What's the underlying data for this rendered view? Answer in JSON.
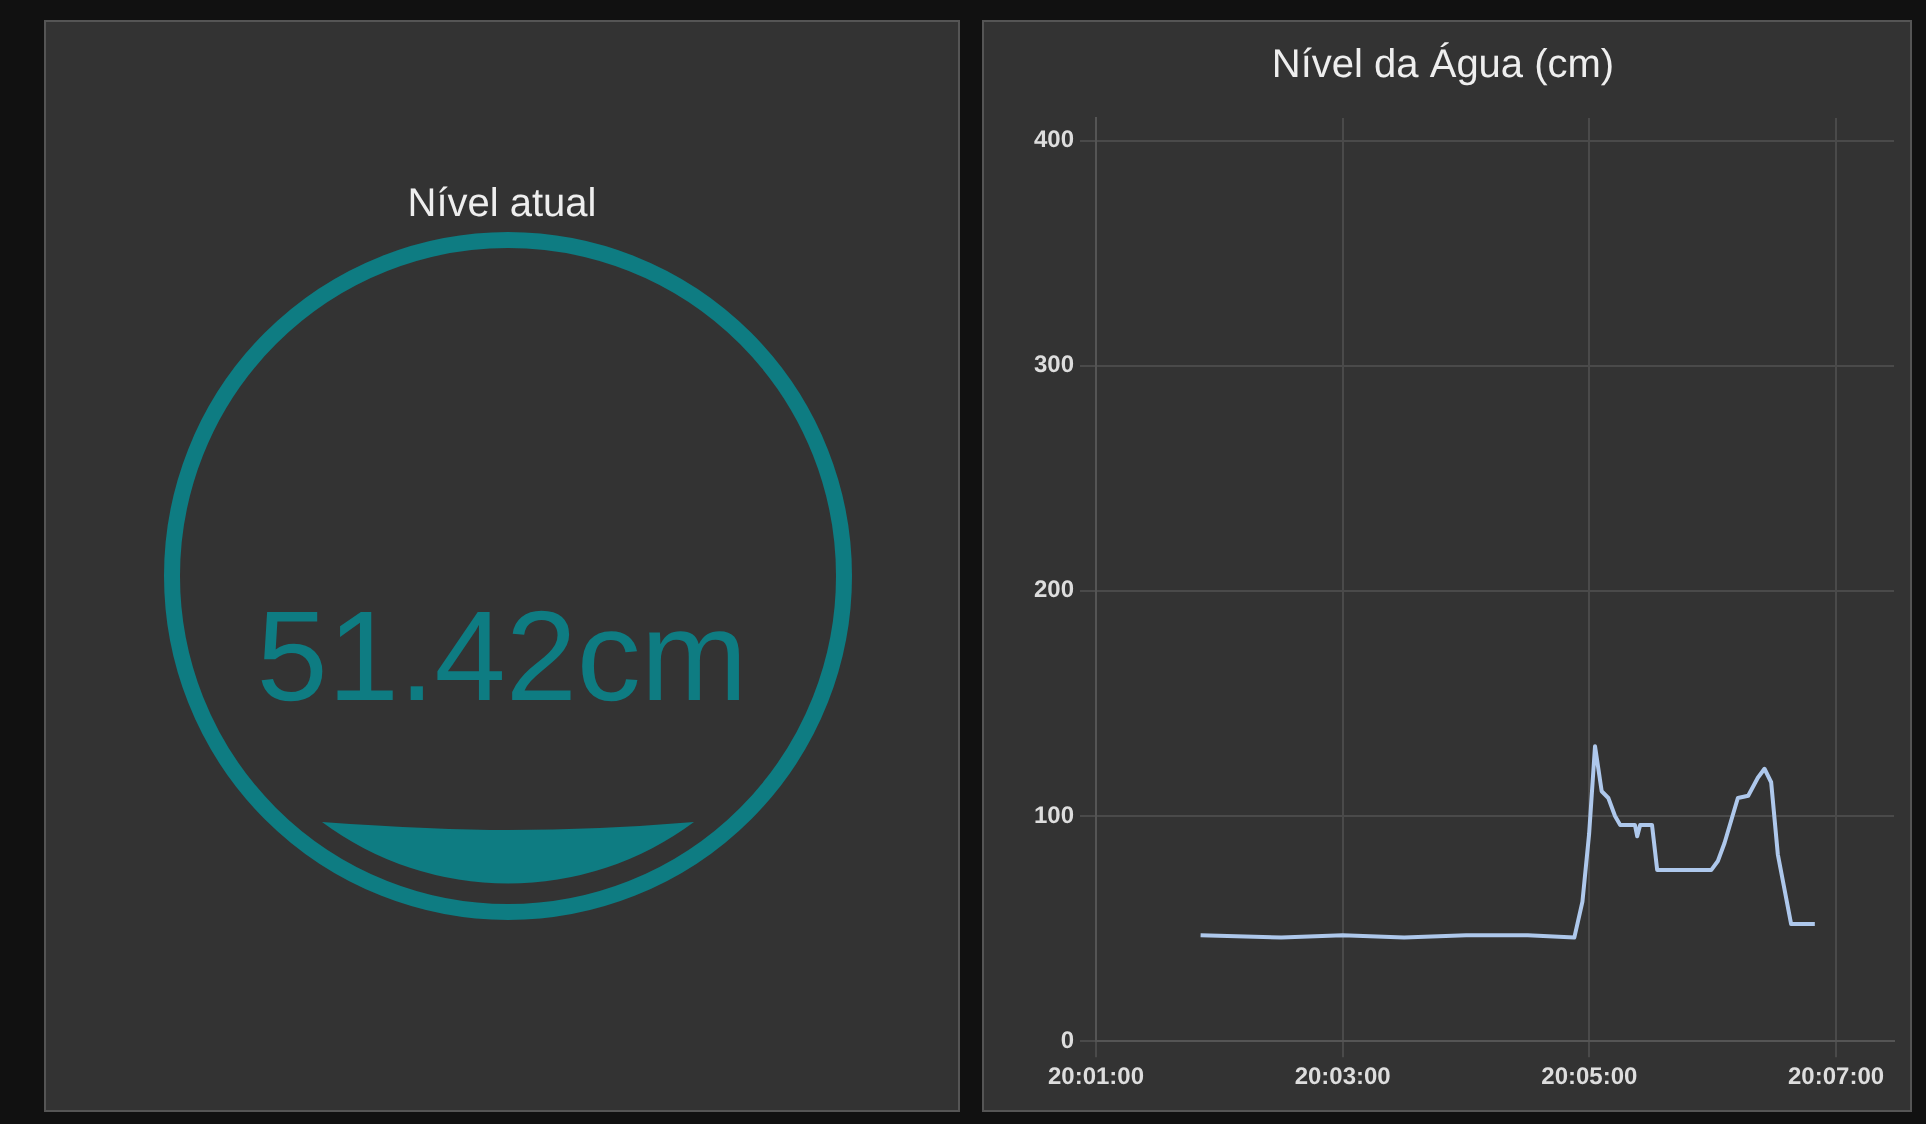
{
  "chart_data": [
    {
      "type": "other",
      "title": "Nível atual",
      "annotations": [
        "51.42cm"
      ],
      "color": "#0e7c82"
    },
    {
      "type": "line",
      "title": "Nível da Água (cm)",
      "xlim": [
        20.016667,
        20.1245
      ],
      "ylim": [
        0,
        410
      ],
      "xticks": [
        {
          "value": 20.016667,
          "label": "20:01:00"
        },
        {
          "value": 20.05,
          "label": "20:03:00"
        },
        {
          "value": 20.083333,
          "label": "20:05:00"
        },
        {
          "value": 20.116667,
          "label": "20:07:00"
        }
      ],
      "yticks": [
        0,
        100,
        200,
        300,
        400
      ],
      "grid": true,
      "marker": "none",
      "series": [
        {
          "color": "#aec8ec",
          "x": [
            20.0308,
            20.0417,
            20.05,
            20.0583,
            20.0667,
            20.075,
            20.0813,
            20.0824,
            20.0833,
            20.0841,
            20.085,
            20.0859,
            20.0868,
            20.0875,
            20.0895,
            20.0898,
            20.0902,
            20.0918,
            20.0925,
            20.0998,
            20.1007,
            20.1016,
            20.1025,
            20.1034,
            20.1048,
            20.1061,
            20.107,
            20.1079,
            20.1088,
            20.1106,
            20.1138
          ],
          "values": [
            47,
            46,
            47,
            46,
            47,
            47,
            46,
            62,
            92,
            131,
            111,
            108,
            100,
            96,
            96,
            91,
            96,
            96,
            76,
            76,
            80,
            88,
            98,
            108,
            109,
            117,
            121,
            115,
            83,
            52,
            52
          ]
        }
      ]
    }
  ]
}
